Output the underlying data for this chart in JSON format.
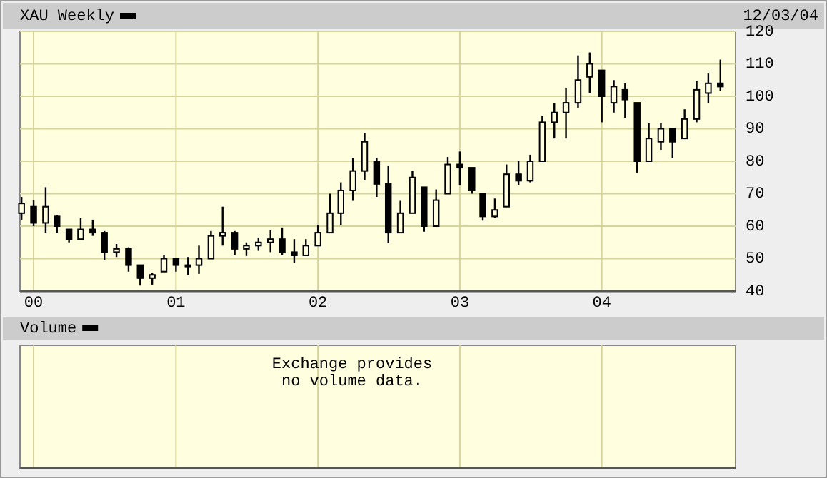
{
  "chart_data": [
    {
      "type": "candlestick",
      "title": "XAU Weekly",
      "color": "#000000",
      "grid": true,
      "annotations": [
        "12/03/04"
      ],
      "x": [
        "1999-12",
        "2000-01",
        "2000-02",
        "2000-03",
        "2000-04",
        "2000-05",
        "2000-06",
        "2000-07",
        "2000-08",
        "2000-09",
        "2000-10",
        "2000-11",
        "2000-12",
        "2001-01",
        "2001-02",
        "2001-03",
        "2001-04",
        "2001-05",
        "2001-06",
        "2001-07",
        "2001-08",
        "2001-09",
        "2001-10",
        "2001-11",
        "2001-12",
        "2002-01",
        "2002-02",
        "2002-03",
        "2002-04",
        "2002-05",
        "2002-06",
        "2002-07",
        "2002-08",
        "2002-09",
        "2002-10",
        "2002-11",
        "2002-12",
        "2003-01",
        "2003-02",
        "2003-03",
        "2003-04",
        "2003-05",
        "2003-06",
        "2003-07",
        "2003-08",
        "2003-09",
        "2003-10",
        "2003-11",
        "2003-12",
        "2004-01",
        "2004-02",
        "2004-03",
        "2004-04",
        "2004-05",
        "2004-06",
        "2004-07",
        "2004-08",
        "2004-09",
        "2004-10",
        "2004-11"
      ],
      "ohlc": [
        [
          64,
          69,
          62,
          67
        ],
        [
          66,
          68,
          60,
          61
        ],
        [
          61,
          72,
          58,
          66
        ],
        [
          63,
          63.5,
          58,
          60
        ],
        [
          59,
          59,
          55,
          56
        ],
        [
          56,
          62.5,
          56,
          59
        ],
        [
          59,
          62,
          57,
          58
        ],
        [
          58,
          58.5,
          49.5,
          52
        ],
        [
          52,
          54.5,
          50.5,
          53
        ],
        [
          53,
          53.5,
          46,
          48
        ],
        [
          48,
          48,
          41.7,
          44
        ],
        [
          44,
          45.5,
          42,
          45
        ],
        [
          46,
          51,
          46,
          50
        ],
        [
          50,
          50,
          46,
          48
        ],
        [
          48,
          50.5,
          45,
          48
        ],
        [
          48,
          54,
          45.3,
          50
        ],
        [
          50,
          58.5,
          50,
          57
        ],
        [
          57,
          66,
          54,
          58
        ],
        [
          58,
          58.5,
          51,
          53
        ],
        [
          53,
          55,
          50.8,
          54
        ],
        [
          54,
          56.5,
          52.4,
          55
        ],
        [
          55,
          58.7,
          52,
          56
        ],
        [
          56,
          59.6,
          51,
          52
        ],
        [
          52,
          56,
          48.7,
          51
        ],
        [
          51,
          56,
          51,
          54
        ],
        [
          54,
          60.4,
          54,
          58
        ],
        [
          58,
          70,
          58,
          64
        ],
        [
          64,
          73.5,
          60.4,
          71
        ],
        [
          71,
          81,
          67.8,
          77
        ],
        [
          77,
          88.7,
          74.3,
          86
        ],
        [
          80,
          81,
          69,
          73
        ],
        [
          73,
          78.7,
          54.8,
          58
        ],
        [
          58,
          67.8,
          58,
          64
        ],
        [
          64,
          77,
          64,
          75
        ],
        [
          72,
          72,
          58.3,
          60
        ],
        [
          60,
          71.3,
          60,
          68
        ],
        [
          70,
          81.3,
          70,
          79
        ],
        [
          79,
          83,
          72.6,
          78
        ],
        [
          78,
          78,
          70,
          71
        ],
        [
          70,
          70,
          61.7,
          63
        ],
        [
          63,
          68.5,
          62.6,
          65
        ],
        [
          66,
          79,
          66,
          76
        ],
        [
          76,
          80,
          72.6,
          74
        ],
        [
          74,
          82,
          73.5,
          80
        ],
        [
          80,
          94,
          80,
          92
        ],
        [
          92,
          98,
          87,
          95
        ],
        [
          95,
          102.6,
          87,
          98
        ],
        [
          98,
          112.6,
          96.5,
          105
        ],
        [
          106,
          113.5,
          101,
          110
        ],
        [
          108,
          108,
          92,
          100
        ],
        [
          98,
          105,
          95,
          103
        ],
        [
          102,
          104,
          93.4,
          99
        ],
        [
          98,
          98,
          76.5,
          80
        ],
        [
          80,
          91.7,
          80,
          87
        ],
        [
          86,
          91.7,
          83.5,
          90
        ],
        [
          90,
          90,
          80.9,
          86
        ],
        [
          87,
          96,
          87,
          93
        ],
        [
          93,
          104.8,
          92,
          102
        ],
        [
          101,
          107,
          98,
          104
        ],
        [
          104,
          111.3,
          101.7,
          103
        ]
      ],
      "xlim": [
        "1999-11-27",
        "2004-12-10"
      ],
      "xticks": [
        {
          "value": "2000-01-01",
          "label": "00"
        },
        {
          "value": "2001-01-01",
          "label": "01"
        },
        {
          "value": "2002-01-01",
          "label": "02"
        },
        {
          "value": "2003-01-01",
          "label": "03"
        },
        {
          "value": "2004-01-01",
          "label": "04"
        }
      ],
      "ylim": [
        40,
        120
      ],
      "yticks": [
        40,
        50,
        60,
        70,
        80,
        90,
        100,
        110,
        120
      ]
    },
    {
      "type": "other",
      "title": "Volume",
      "annotations": [
        "Exchange provides no volume data."
      ]
    }
  ]
}
